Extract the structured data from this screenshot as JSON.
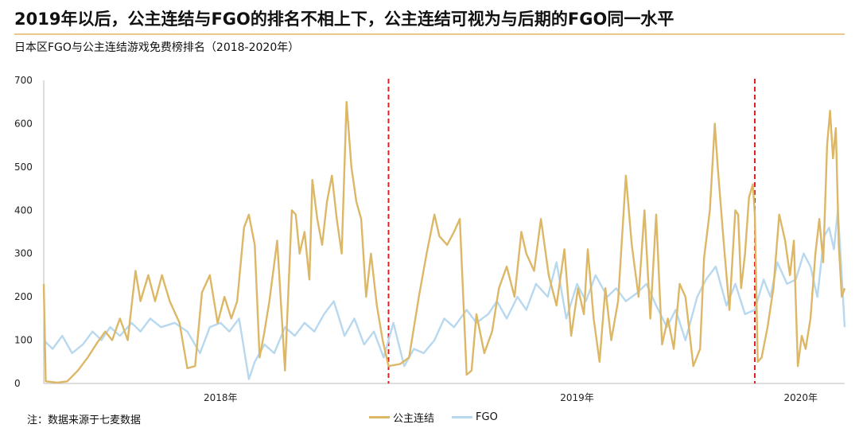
{
  "header": {
    "title": "2019年以后，公主连结与FGO的排名不相上下，公主连结可视为与后期的FGO同一水平",
    "subtitle": "日本区FGO与公主连结游戏免费榜排名（2018-2020年）"
  },
  "footer": {
    "source": "注：数据来源于七麦数据"
  },
  "colors": {
    "princess": "#dcb766",
    "fgo": "#b7d8ef",
    "divider": "#e02020",
    "rule": "#e8c98a"
  },
  "chart_data": {
    "type": "line",
    "title": "日本区FGO与公主连结游戏免费榜排名（2018-2020年）",
    "ylim": [
      0,
      700
    ],
    "yticks": [
      0,
      100,
      200,
      300,
      400,
      500,
      600,
      700
    ],
    "x_range": [
      "2018-01-01",
      "2020-03-31"
    ],
    "x_labels": [
      {
        "label": "2018年",
        "at": "2018-07-01"
      },
      {
        "label": "2019年",
        "at": "2019-07-01"
      },
      {
        "label": "2020年",
        "at": "2020-02-15"
      }
    ],
    "dividers": [
      "2018-12-20",
      "2019-12-30"
    ],
    "grid": false,
    "legend": "bottom",
    "series": [
      {
        "name": "公主连结",
        "color": "#dcb766",
        "points": [
          [
            "2018-01-01",
            230
          ],
          [
            "2018-01-03",
            5
          ],
          [
            "2018-01-15",
            2
          ],
          [
            "2018-01-25",
            5
          ],
          [
            "2018-02-05",
            30
          ],
          [
            "2018-02-15",
            60
          ],
          [
            "2018-02-25",
            95
          ],
          [
            "2018-03-05",
            120
          ],
          [
            "2018-03-12",
            100
          ],
          [
            "2018-03-20",
            150
          ],
          [
            "2018-03-28",
            100
          ],
          [
            "2018-04-05",
            260
          ],
          [
            "2018-04-10",
            190
          ],
          [
            "2018-04-18",
            250
          ],
          [
            "2018-04-25",
            190
          ],
          [
            "2018-05-02",
            250
          ],
          [
            "2018-05-10",
            190
          ],
          [
            "2018-05-20",
            140
          ],
          [
            "2018-05-28",
            35
          ],
          [
            "2018-06-05",
            40
          ],
          [
            "2018-06-12",
            210
          ],
          [
            "2018-06-20",
            250
          ],
          [
            "2018-06-28",
            140
          ],
          [
            "2018-07-05",
            200
          ],
          [
            "2018-07-12",
            150
          ],
          [
            "2018-07-18",
            190
          ],
          [
            "2018-07-25",
            360
          ],
          [
            "2018-07-30",
            390
          ],
          [
            "2018-08-05",
            320
          ],
          [
            "2018-08-10",
            60
          ],
          [
            "2018-08-15",
            120
          ],
          [
            "2018-08-20",
            190
          ],
          [
            "2018-08-28",
            330
          ],
          [
            "2018-09-05",
            30
          ],
          [
            "2018-09-12",
            400
          ],
          [
            "2018-09-16",
            390
          ],
          [
            "2018-09-20",
            300
          ],
          [
            "2018-09-25",
            350
          ],
          [
            "2018-09-30",
            240
          ],
          [
            "2018-10-03",
            470
          ],
          [
            "2018-10-08",
            380
          ],
          [
            "2018-10-13",
            320
          ],
          [
            "2018-10-18",
            420
          ],
          [
            "2018-10-23",
            480
          ],
          [
            "2018-10-28",
            380
          ],
          [
            "2018-11-02",
            300
          ],
          [
            "2018-11-07",
            650
          ],
          [
            "2018-11-12",
            500
          ],
          [
            "2018-11-17",
            420
          ],
          [
            "2018-11-22",
            380
          ],
          [
            "2018-11-27",
            200
          ],
          [
            "2018-12-02",
            300
          ],
          [
            "2018-12-08",
            180
          ],
          [
            "2018-12-14",
            100
          ],
          [
            "2018-12-20",
            40
          ],
          [
            "2019-01-01",
            45
          ],
          [
            "2019-01-10",
            60
          ],
          [
            "2019-01-20",
            200
          ],
          [
            "2019-01-28",
            300
          ],
          [
            "2019-02-05",
            390
          ],
          [
            "2019-02-10",
            340
          ],
          [
            "2019-02-18",
            320
          ],
          [
            "2019-02-25",
            350
          ],
          [
            "2019-03-03",
            380
          ],
          [
            "2019-03-10",
            20
          ],
          [
            "2019-03-15",
            30
          ],
          [
            "2019-03-20",
            160
          ],
          [
            "2019-03-28",
            70
          ],
          [
            "2019-04-05",
            120
          ],
          [
            "2019-04-12",
            220
          ],
          [
            "2019-04-20",
            270
          ],
          [
            "2019-04-28",
            200
          ],
          [
            "2019-05-05",
            350
          ],
          [
            "2019-05-10",
            300
          ],
          [
            "2019-05-18",
            260
          ],
          [
            "2019-05-25",
            380
          ],
          [
            "2019-06-02",
            250
          ],
          [
            "2019-06-10",
            180
          ],
          [
            "2019-06-18",
            310
          ],
          [
            "2019-06-25",
            110
          ],
          [
            "2019-07-02",
            220
          ],
          [
            "2019-07-08",
            160
          ],
          [
            "2019-07-12",
            310
          ],
          [
            "2019-07-18",
            150
          ],
          [
            "2019-07-24",
            50
          ],
          [
            "2019-07-30",
            220
          ],
          [
            "2019-08-05",
            100
          ],
          [
            "2019-08-12",
            190
          ],
          [
            "2019-08-20",
            480
          ],
          [
            "2019-08-26",
            320
          ],
          [
            "2019-09-02",
            200
          ],
          [
            "2019-09-08",
            400
          ],
          [
            "2019-09-14",
            150
          ],
          [
            "2019-09-20",
            390
          ],
          [
            "2019-09-26",
            90
          ],
          [
            "2019-10-02",
            150
          ],
          [
            "2019-10-08",
            80
          ],
          [
            "2019-10-14",
            230
          ],
          [
            "2019-10-20",
            200
          ],
          [
            "2019-10-28",
            40
          ],
          [
            "2019-11-04",
            80
          ],
          [
            "2019-11-08",
            290
          ],
          [
            "2019-11-14",
            400
          ],
          [
            "2019-11-19",
            600
          ],
          [
            "2019-11-22",
            500
          ],
          [
            "2019-11-28",
            330
          ],
          [
            "2019-12-04",
            170
          ],
          [
            "2019-12-10",
            400
          ],
          [
            "2019-12-13",
            390
          ],
          [
            "2019-12-16",
            220
          ],
          [
            "2019-12-20",
            300
          ],
          [
            "2019-12-24",
            430
          ],
          [
            "2019-12-28",
            460
          ],
          [
            "2019-12-30",
            390
          ],
          [
            "2020-01-02",
            50
          ],
          [
            "2020-01-06",
            60
          ],
          [
            "2020-01-12",
            130
          ],
          [
            "2020-01-18",
            220
          ],
          [
            "2020-01-24",
            390
          ],
          [
            "2020-01-30",
            330
          ],
          [
            "2020-02-04",
            250
          ],
          [
            "2020-02-08",
            330
          ],
          [
            "2020-02-12",
            40
          ],
          [
            "2020-02-16",
            110
          ],
          [
            "2020-02-20",
            80
          ],
          [
            "2020-02-25",
            150
          ],
          [
            "2020-03-01",
            300
          ],
          [
            "2020-03-05",
            380
          ],
          [
            "2020-03-09",
            280
          ],
          [
            "2020-03-13",
            550
          ],
          [
            "2020-03-16",
            630
          ],
          [
            "2020-03-19",
            520
          ],
          [
            "2020-03-22",
            590
          ],
          [
            "2020-03-25",
            320
          ],
          [
            "2020-03-28",
            200
          ],
          [
            "2020-03-31",
            220
          ]
        ]
      },
      {
        "name": "FGO",
        "color": "#b7d8ef",
        "points": [
          [
            "2018-01-01",
            100
          ],
          [
            "2018-01-10",
            80
          ],
          [
            "2018-01-20",
            110
          ],
          [
            "2018-01-30",
            70
          ],
          [
            "2018-02-10",
            90
          ],
          [
            "2018-02-20",
            120
          ],
          [
            "2018-03-01",
            100
          ],
          [
            "2018-03-10",
            130
          ],
          [
            "2018-03-20",
            110
          ],
          [
            "2018-04-01",
            140
          ],
          [
            "2018-04-10",
            120
          ],
          [
            "2018-04-20",
            150
          ],
          [
            "2018-05-01",
            130
          ],
          [
            "2018-05-15",
            140
          ],
          [
            "2018-05-28",
            120
          ],
          [
            "2018-06-10",
            70
          ],
          [
            "2018-06-20",
            130
          ],
          [
            "2018-07-01",
            140
          ],
          [
            "2018-07-10",
            120
          ],
          [
            "2018-07-20",
            150
          ],
          [
            "2018-07-30",
            10
          ],
          [
            "2018-08-05",
            50
          ],
          [
            "2018-08-15",
            90
          ],
          [
            "2018-08-25",
            70
          ],
          [
            "2018-09-05",
            130
          ],
          [
            "2018-09-15",
            110
          ],
          [
            "2018-09-25",
            140
          ],
          [
            "2018-10-05",
            120
          ],
          [
            "2018-10-15",
            160
          ],
          [
            "2018-10-25",
            190
          ],
          [
            "2018-11-05",
            110
          ],
          [
            "2018-11-15",
            150
          ],
          [
            "2018-11-25",
            90
          ],
          [
            "2018-12-05",
            120
          ],
          [
            "2018-12-15",
            60
          ],
          [
            "2018-12-25",
            140
          ],
          [
            "2019-01-05",
            40
          ],
          [
            "2019-01-15",
            80
          ],
          [
            "2019-01-25",
            70
          ],
          [
            "2019-02-05",
            100
          ],
          [
            "2019-02-15",
            150
          ],
          [
            "2019-02-25",
            130
          ],
          [
            "2019-03-10",
            170
          ],
          [
            "2019-03-20",
            140
          ],
          [
            "2019-04-01",
            160
          ],
          [
            "2019-04-10",
            190
          ],
          [
            "2019-04-20",
            150
          ],
          [
            "2019-05-01",
            200
          ],
          [
            "2019-05-10",
            170
          ],
          [
            "2019-05-20",
            230
          ],
          [
            "2019-06-01",
            200
          ],
          [
            "2019-06-10",
            280
          ],
          [
            "2019-06-20",
            150
          ],
          [
            "2019-07-01",
            230
          ],
          [
            "2019-07-10",
            190
          ],
          [
            "2019-07-20",
            250
          ],
          [
            "2019-08-01",
            200
          ],
          [
            "2019-08-10",
            220
          ],
          [
            "2019-08-20",
            190
          ],
          [
            "2019-09-01",
            210
          ],
          [
            "2019-09-10",
            230
          ],
          [
            "2019-09-20",
            180
          ],
          [
            "2019-10-01",
            130
          ],
          [
            "2019-10-10",
            170
          ],
          [
            "2019-10-20",
            100
          ],
          [
            "2019-11-01",
            200
          ],
          [
            "2019-11-10",
            240
          ],
          [
            "2019-11-20",
            270
          ],
          [
            "2019-12-01",
            180
          ],
          [
            "2019-12-10",
            230
          ],
          [
            "2019-12-20",
            160
          ],
          [
            "2019-12-30",
            170
          ],
          [
            "2020-01-08",
            240
          ],
          [
            "2020-01-15",
            200
          ],
          [
            "2020-01-22",
            280
          ],
          [
            "2020-02-01",
            230
          ],
          [
            "2020-02-10",
            240
          ],
          [
            "2020-02-18",
            300
          ],
          [
            "2020-02-25",
            270
          ],
          [
            "2020-03-03",
            200
          ],
          [
            "2020-03-10",
            340
          ],
          [
            "2020-03-15",
            360
          ],
          [
            "2020-03-20",
            310
          ],
          [
            "2020-03-24",
            400
          ],
          [
            "2020-03-28",
            250
          ],
          [
            "2020-03-31",
            130
          ]
        ]
      }
    ]
  }
}
